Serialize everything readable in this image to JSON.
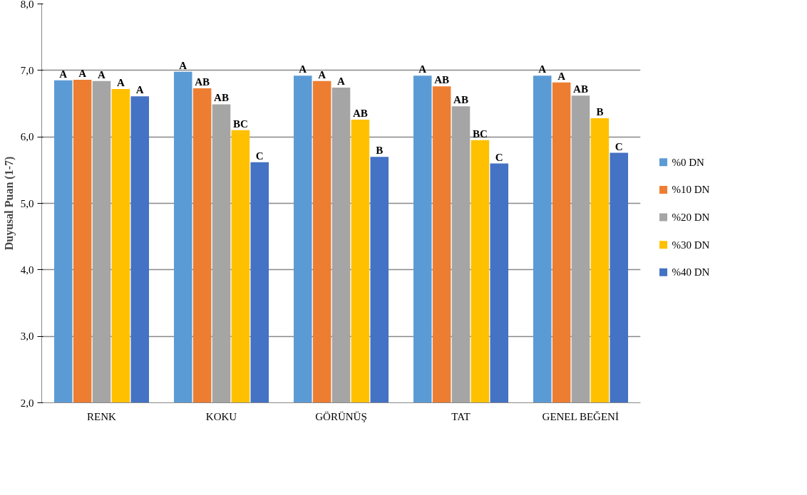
{
  "chart_data": {
    "type": "bar",
    "ylabel": "Duyusal Puan (1-7)",
    "categories": [
      "RENK",
      "KOKU",
      "GÖRÜNÜŞ",
      "TAT",
      "GENEL BEĞENİ"
    ],
    "ylim": [
      2.0,
      8.0
    ],
    "yticks": [
      {
        "value": 2,
        "label": "2,0"
      },
      {
        "value": 3,
        "label": "3,0"
      },
      {
        "value": 4,
        "label": "4,0"
      },
      {
        "value": 5,
        "label": "5,0"
      },
      {
        "value": 6,
        "label": "6,0"
      },
      {
        "value": 7,
        "label": "7,0"
      },
      {
        "value": 8,
        "label": "8,0"
      }
    ],
    "grid": "y",
    "legend": "right",
    "series": [
      {
        "name": "%0 DN",
        "color": "#5b9bd5",
        "values": [
          6.85,
          6.98,
          6.92,
          6.92,
          6.92
        ],
        "value_labels": [
          "A",
          "A",
          "A",
          "A",
          "A"
        ]
      },
      {
        "name": "%10 DN",
        "color": "#ed7d31",
        "values": [
          6.86,
          6.73,
          6.84,
          6.76,
          6.82
        ],
        "value_labels": [
          "A",
          "AB",
          "A",
          "AB",
          "A"
        ]
      },
      {
        "name": "%20 DN",
        "color": "#a5a5a5",
        "values": [
          6.84,
          6.49,
          6.74,
          6.46,
          6.62
        ],
        "value_labels": [
          "A",
          "AB",
          "A",
          "AB",
          "AB"
        ]
      },
      {
        "name": "%30 DN",
        "color": "#ffc000",
        "values": [
          6.72,
          6.1,
          6.26,
          5.95,
          6.28
        ],
        "value_labels": [
          "A",
          "BC",
          "AB",
          "BC",
          "B"
        ]
      },
      {
        "name": "%40 DN",
        "color": "#4472c4",
        "values": [
          6.61,
          5.62,
          5.7,
          5.6,
          5.76
        ],
        "value_labels": [
          "A",
          "C",
          "B",
          "C",
          "C"
        ]
      }
    ]
  }
}
